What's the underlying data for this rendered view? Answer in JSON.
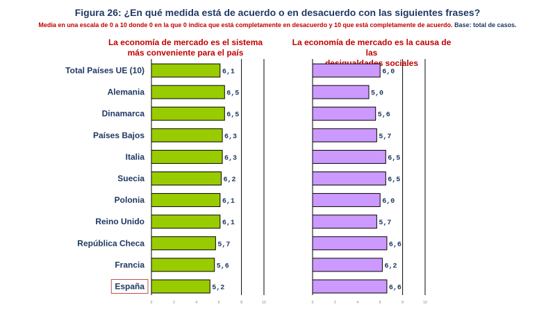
{
  "header": {
    "title": "Figura 26:  ¿En qué medida está de acuerdo o en desacuerdo con las siguientes frases?",
    "subtitle": "Media en una escala de 0 a 10 donde 0 en la que 0 indica que está completamente en desacuerdo y 10 que está completamente de acuerdo.",
    "base": "Base: total de casos."
  },
  "chart_data": [
    {
      "type": "bar",
      "orientation": "horizontal",
      "title_lines": [
        "La economía de mercado es el sistema",
        "más conveniente para el país"
      ],
      "categories": [
        "Total Países UE (10)",
        "Alemania",
        "Dinamarca",
        "Países Bajos",
        "Italia",
        "Suecia",
        "Polonia",
        "Reino Unido",
        "República Checa",
        "Francia",
        "España"
      ],
      "values": [
        6.1,
        6.5,
        6.5,
        6.3,
        6.3,
        6.2,
        6.1,
        6.1,
        5.7,
        5.6,
        5.2
      ],
      "value_labels": [
        "6,1",
        "6,5",
        "6,5",
        "6,3",
        "6,3",
        "6,2",
        "6,1",
        "6,1",
        "5,7",
        "5,6",
        "5,2"
      ],
      "xlim": [
        0,
        10
      ],
      "ticks": [
        "0",
        "2",
        "4",
        "6",
        "8",
        "10"
      ],
      "bar_color": "#99cc00",
      "highlight_category": "España",
      "highlight_color": "#c0504d"
    },
    {
      "type": "bar",
      "orientation": "horizontal",
      "title_lines": [
        "La economía de mercado es la causa de las",
        "desigualdades sociales"
      ],
      "categories": [
        "Total Países UE (10)",
        "Alemania",
        "Dinamarca",
        "Países Bajos",
        "Italia",
        "Suecia",
        "Polonia",
        "Reino Unido",
        "República Checa",
        "Francia",
        "España"
      ],
      "values": [
        6.0,
        5.0,
        5.6,
        5.7,
        6.5,
        6.5,
        6.0,
        5.7,
        6.6,
        6.2,
        6.6
      ],
      "value_labels": [
        "6,0",
        "5,0",
        "5,6",
        "5,7",
        "6,5",
        "6,5",
        "6,0",
        "5,7",
        "6,6",
        "6,2",
        "6,6"
      ],
      "xlim": [
        0,
        10
      ],
      "ticks": [
        "0",
        "2",
        "4",
        "6",
        "8",
        "10"
      ],
      "bar_color": "#cc99ff"
    }
  ]
}
